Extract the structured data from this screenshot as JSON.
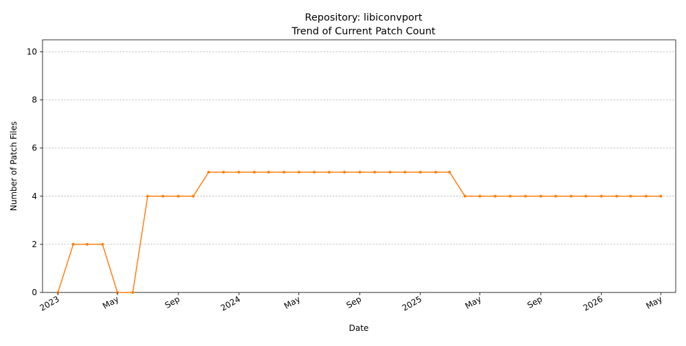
{
  "chart_data": {
    "type": "line",
    "title": "Repository: libiconvport",
    "subtitle": "Trend of Current Patch Count",
    "xlabel": "Date",
    "ylabel": "Number of Patch Files",
    "ylim": [
      0,
      10.5
    ],
    "xlim": [
      "2022-12-01",
      "2026-05-31"
    ],
    "grid": "y-dashed",
    "yticks": [
      "0",
      "2",
      "4",
      "6",
      "8",
      "10"
    ],
    "xticks": [
      {
        "date": "2023-01-01",
        "label": "2023"
      },
      {
        "date": "2023-05-01",
        "label": "May"
      },
      {
        "date": "2023-09-01",
        "label": "Sep"
      },
      {
        "date": "2024-01-01",
        "label": "2024"
      },
      {
        "date": "2024-05-01",
        "label": "May"
      },
      {
        "date": "2024-09-01",
        "label": "Sep"
      },
      {
        "date": "2025-01-01",
        "label": "2025"
      },
      {
        "date": "2025-05-01",
        "label": "May"
      },
      {
        "date": "2025-09-01",
        "label": "Sep"
      },
      {
        "date": "2026-01-01",
        "label": "2026"
      },
      {
        "date": "2026-05-01",
        "label": "May"
      }
    ],
    "series": [
      {
        "color": "#ff7f0e",
        "x": [
          "2023-01-01",
          "2023-02-01",
          "2023-03-01",
          "2023-04-01",
          "2023-05-01",
          "2023-06-01",
          "2023-07-01",
          "2023-08-01",
          "2023-09-01",
          "2023-10-01",
          "2023-11-01",
          "2023-12-01",
          "2024-01-01",
          "2024-02-01",
          "2024-03-01",
          "2024-04-01",
          "2024-05-01",
          "2024-06-01",
          "2024-07-01",
          "2024-08-01",
          "2024-09-01",
          "2024-10-01",
          "2024-11-01",
          "2024-12-01",
          "2025-01-01",
          "2025-02-01",
          "2025-03-01",
          "2025-04-01",
          "2025-05-01",
          "2025-06-01",
          "2025-07-01",
          "2025-08-01",
          "2025-09-01",
          "2025-10-01",
          "2025-11-01",
          "2025-12-01",
          "2026-01-01",
          "2026-02-01",
          "2026-03-01",
          "2026-04-01",
          "2026-05-01"
        ],
        "values": [
          0,
          2,
          2,
          2,
          0,
          0,
          4,
          4,
          4,
          4,
          5,
          5,
          5,
          5,
          5,
          5,
          5,
          5,
          5,
          5,
          5,
          5,
          5,
          5,
          5,
          5,
          5,
          4,
          4,
          4,
          4,
          4,
          4,
          4,
          4,
          4,
          4,
          4,
          4,
          4,
          4
        ]
      }
    ]
  }
}
